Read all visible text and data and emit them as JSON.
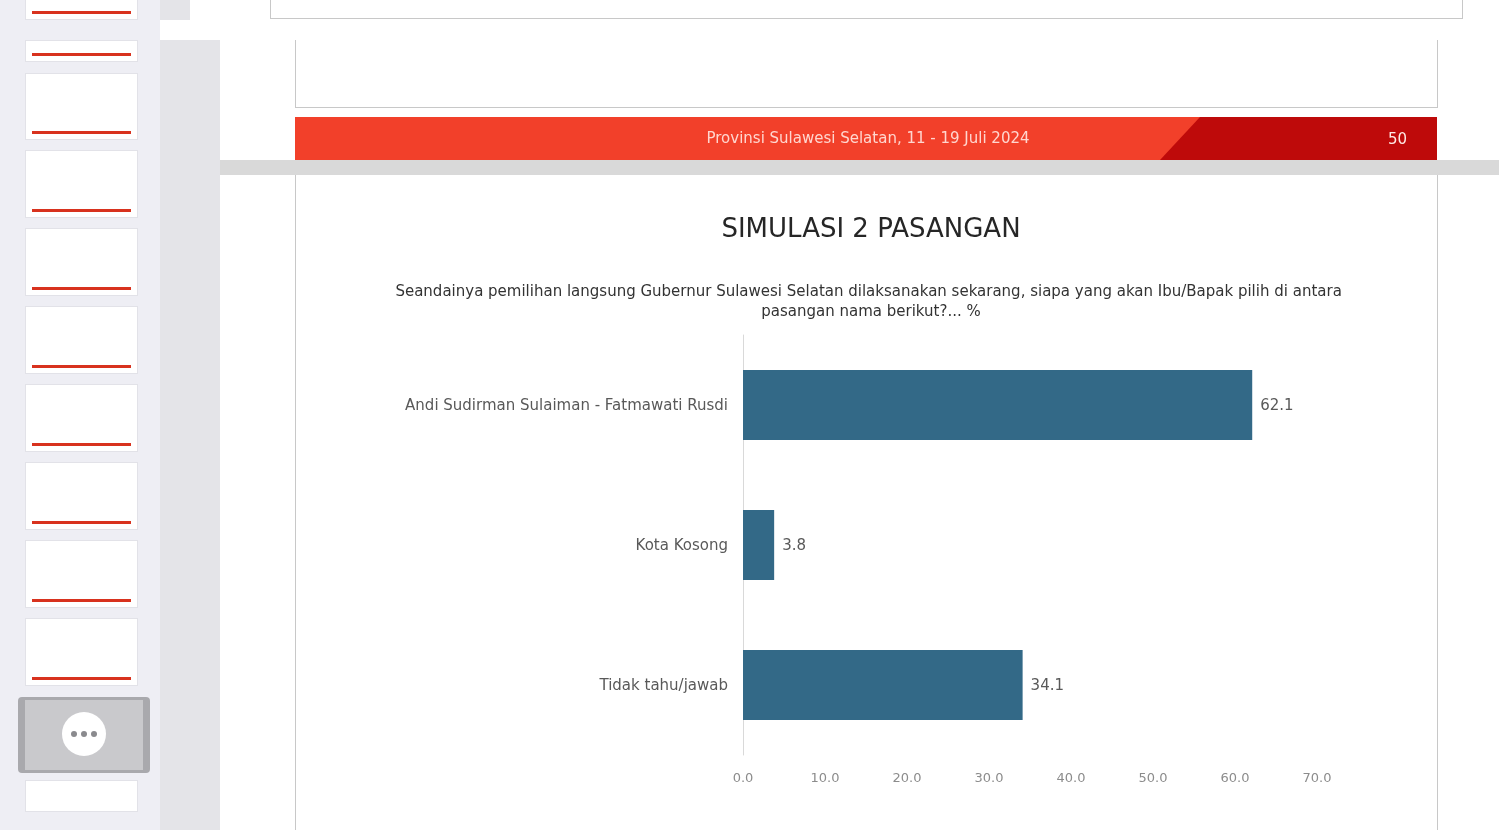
{
  "chart_data": {
    "type": "bar",
    "orientation": "horizontal",
    "title": "SIMULASI 2 PASANGAN",
    "subtitle": "Seandainya pemilihan langsung Gubernur Sulawesi Selatan dilaksanakan sekarang, siapa yang akan Ibu/Bapak pilih di antara pasangan nama berikut?... %",
    "categories": [
      "Andi Sudirman Sulaiman - Fatmawati Rusdi",
      "Kota Kosong",
      "Tidak tahu/jawab"
    ],
    "values": [
      62.1,
      3.8,
      34.1
    ],
    "color": "#336987",
    "data_labels": true,
    "xlim": [
      0,
      70
    ],
    "xticks": [
      {
        "value": 0,
        "label": "0.0"
      },
      {
        "value": 10,
        "label": "10.0"
      },
      {
        "value": 20,
        "label": "20.0"
      },
      {
        "value": 30,
        "label": "30.0"
      },
      {
        "value": 40,
        "label": "40.0"
      },
      {
        "value": 50,
        "label": "50.0"
      },
      {
        "value": 60,
        "label": "60.0"
      },
      {
        "value": 70,
        "label": "70.0"
      }
    ],
    "annotations": [
      "Provinsi Sulawesi Selatan, 11 - 19 Juli 2024",
      "50"
    ]
  }
}
